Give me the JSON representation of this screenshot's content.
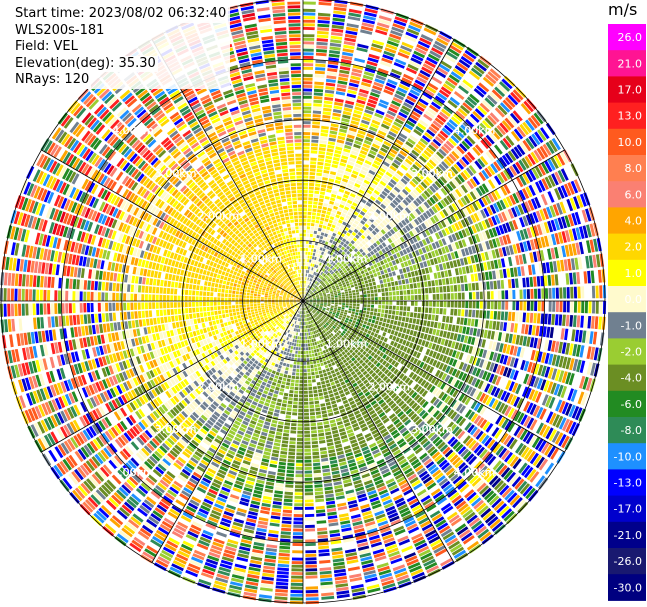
{
  "info": {
    "start_time": "Start time: 2023/08/02 06:32:40",
    "instrument": "WLS200s-181",
    "field": "Field: VEL",
    "elevation": "Elevation(deg): 35.30",
    "nrays": "NRays: 120"
  },
  "colorbar": {
    "unit": "m/s",
    "ticks": [
      "26.0",
      "21.0",
      "17.0",
      "13.0",
      "10.0",
      "8.0",
      "6.0",
      "4.0",
      "2.0",
      "1.0",
      "0.0",
      "-1.0",
      "-2.0",
      "-4.0",
      "-6.0",
      "-8.0",
      "-10.0",
      "-13.0",
      "-17.0",
      "-21.0",
      "-26.0",
      "-30.0"
    ],
    "colors": [
      "#ff00ff",
      "#ff1493",
      "#e6001a",
      "#ff2020",
      "#ff5a1e",
      "#ff7f50",
      "#fa8072",
      "#ffa500",
      "#ffd700",
      "#ffff00",
      "#fffacd",
      "#708090",
      "#9acd32",
      "#6b8e23",
      "#228b22",
      "#2e8b57",
      "#1e90ff",
      "#0000ff",
      "#0000cd",
      "#00008b",
      "#191970",
      "#000080"
    ]
  },
  "chart_data": {
    "type": "heatmap",
    "projection": "polar PPI",
    "field": "VEL",
    "units": "m/s",
    "rays": 120,
    "value_range": [
      -30,
      30
    ],
    "range_rings_km": [
      1,
      2,
      3,
      4
    ],
    "range_labels": [
      "1.00km",
      "2.00km",
      "3.00km",
      "4.00km"
    ],
    "spoke_interval_deg": 30,
    "max_range_km": 5.0
  }
}
